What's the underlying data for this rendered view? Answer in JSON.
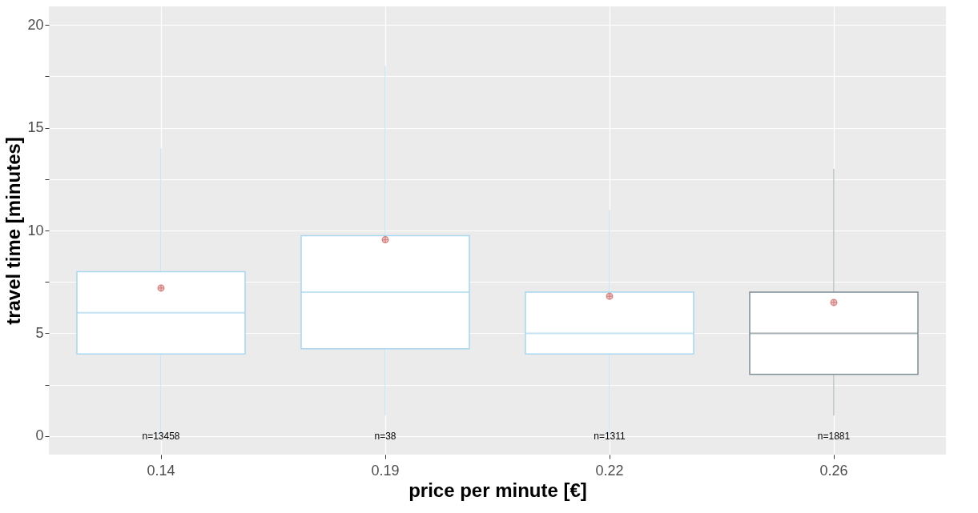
{
  "chart_data": {
    "type": "box",
    "xlabel": "price per minute [€]",
    "ylabel": "travel time [minutes]",
    "categories": [
      "0.14",
      "0.19",
      "0.22",
      "0.26"
    ],
    "boxes": [
      {
        "low": 0,
        "q1": 4,
        "median": 6,
        "q3": 8,
        "high": 14,
        "mean": 7.2
      },
      {
        "low": 1,
        "q1": 4.25,
        "median": 7,
        "q3": 9.75,
        "high": 18,
        "mean": 9.55
      },
      {
        "low": 0,
        "q1": 4,
        "median": 5,
        "q3": 7,
        "high": 11,
        "mean": 6.8
      },
      {
        "low": 1,
        "q1": 3,
        "median": 5,
        "q3": 7,
        "high": 13,
        "mean": 6.5
      }
    ],
    "colors": [
      "#a9d6f0",
      "#a9d6f0",
      "#a9d6f0",
      "#7f8f96"
    ],
    "ylim": [
      -0.9,
      20.9
    ],
    "yticks": [
      0,
      {
        "value": 2.5,
        "label": null
      },
      5,
      {
        "value": 7.5,
        "label": null
      },
      10,
      {
        "value": 12.5,
        "label": null
      },
      15,
      {
        "value": 17.5,
        "label": null
      },
      20
    ],
    "grid": true,
    "annotations": [
      "n=13458",
      "n=38",
      "n=1311",
      "n=1881"
    ]
  }
}
